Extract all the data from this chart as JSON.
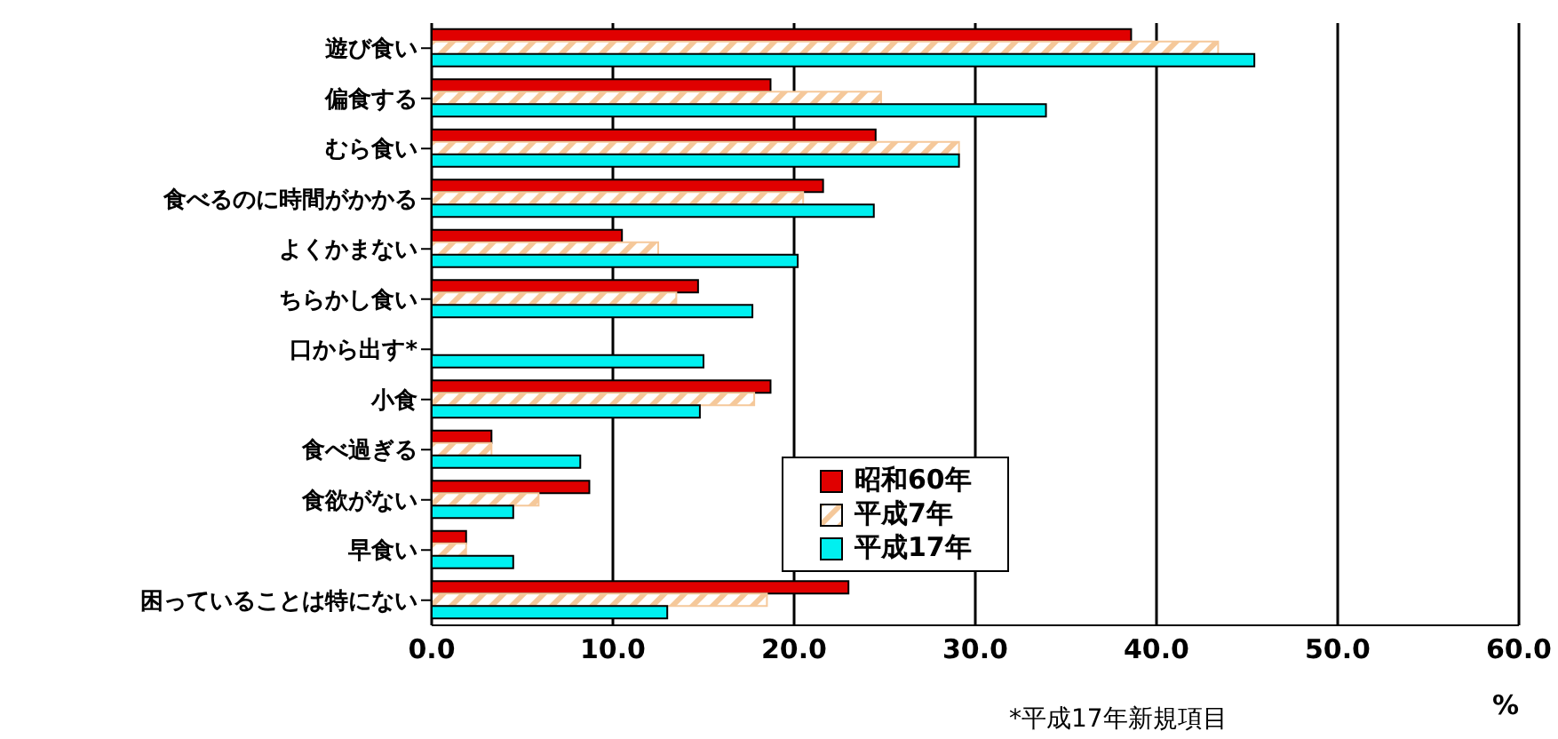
{
  "chart_data": {
    "type": "bar",
    "orientation": "horizontal",
    "xlabel": "%",
    "annotations": [
      "*平成17年新規項目"
    ],
    "categories": [
      "遊び食い",
      "偏食する",
      "むら食い",
      "食べるのに時間がかかる",
      "よくかまない",
      "ちらかし食い",
      "口から出す*",
      "小食",
      "食べ過ぎる",
      "食欲がない",
      "早食い",
      "困っていることは特にない"
    ],
    "series": [
      {
        "name": "昭和60年",
        "color": "#e00000",
        "values": [
          38.6,
          18.7,
          24.5,
          21.6,
          10.5,
          14.7,
          null,
          18.7,
          3.3,
          8.7,
          1.9,
          23.0
        ]
      },
      {
        "name": "平成7年",
        "color": "#f5c89a",
        "values": [
          43.4,
          24.8,
          29.1,
          20.5,
          12.5,
          13.5,
          null,
          17.8,
          3.3,
          5.9,
          1.9,
          18.5
        ]
      },
      {
        "name": "平成17年",
        "color": "#00f0f0",
        "values": [
          45.4,
          33.9,
          29.1,
          24.4,
          20.2,
          17.7,
          15.0,
          14.8,
          8.2,
          4.5,
          4.5,
          13.0
        ]
      }
    ],
    "xlim": [
      0,
      60
    ],
    "xticks": [
      {
        "value": 0,
        "label": "0.0"
      },
      {
        "value": 10,
        "label": "10.0"
      },
      {
        "value": 20,
        "label": "20.0"
      },
      {
        "value": 30,
        "label": "30.0"
      },
      {
        "value": 40,
        "label": "40.0"
      },
      {
        "value": 50,
        "label": "50.0"
      },
      {
        "value": 60,
        "label": "60.0"
      }
    ],
    "grid": "x",
    "legend": "bottom"
  }
}
